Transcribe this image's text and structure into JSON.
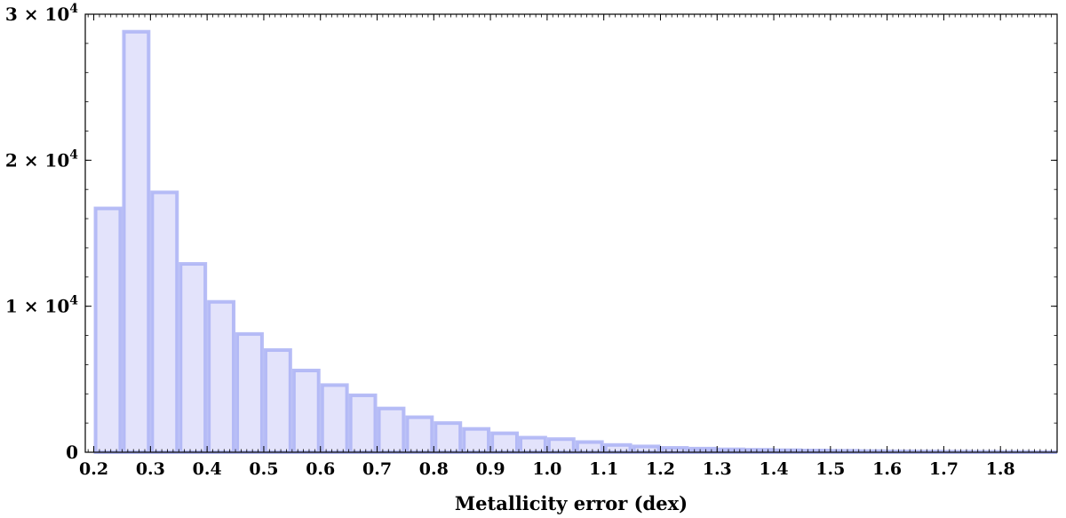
{
  "chart_data": {
    "type": "bar",
    "title": "",
    "xlabel": "Metallicity error (dex)",
    "ylabel": "",
    "xlim": [
      0.185,
      1.9
    ],
    "ylim": [
      0,
      30000
    ],
    "bin_edges": [
      0.2,
      0.25,
      0.3,
      0.35,
      0.4,
      0.45,
      0.5,
      0.55,
      0.6,
      0.65,
      0.7,
      0.75,
      0.8,
      0.85,
      0.9,
      0.95,
      1.0,
      1.05,
      1.1,
      1.15,
      1.2,
      1.25,
      1.3,
      1.35,
      1.4,
      1.45,
      1.5,
      1.55,
      1.6,
      1.65,
      1.7,
      1.75,
      1.8,
      1.85,
      1.9
    ],
    "values": [
      16700,
      28800,
      17800,
      12900,
      10300,
      8100,
      7000,
      5600,
      4600,
      3900,
      3000,
      2400,
      2000,
      1600,
      1300,
      1000,
      900,
      700,
      500,
      400,
      300,
      250,
      200,
      170,
      140,
      120,
      100,
      80,
      60,
      50,
      40,
      30,
      20,
      10
    ],
    "xticks": [
      "0.2",
      "0.3",
      "0.4",
      "0.5",
      "0.6",
      "0.7",
      "0.8",
      "0.9",
      "1.0",
      "1.1",
      "1.2",
      "1.3",
      "1.4",
      "1.5",
      "1.6",
      "1.7",
      "1.8"
    ],
    "yticks": [
      {
        "value": 0,
        "mantissa": "0",
        "exponent": ""
      },
      {
        "value": 10000,
        "mantissa": "1 × 10",
        "exponent": "4"
      },
      {
        "value": 20000,
        "mantissa": "2 × 10",
        "exponent": "4"
      },
      {
        "value": 30000,
        "mantissa": "3 × 10",
        "exponent": "4"
      }
    ],
    "grid": false,
    "bar_fill": "#e3e3fb",
    "bar_edge": "#aab1f4",
    "axis_color": "#000000"
  }
}
